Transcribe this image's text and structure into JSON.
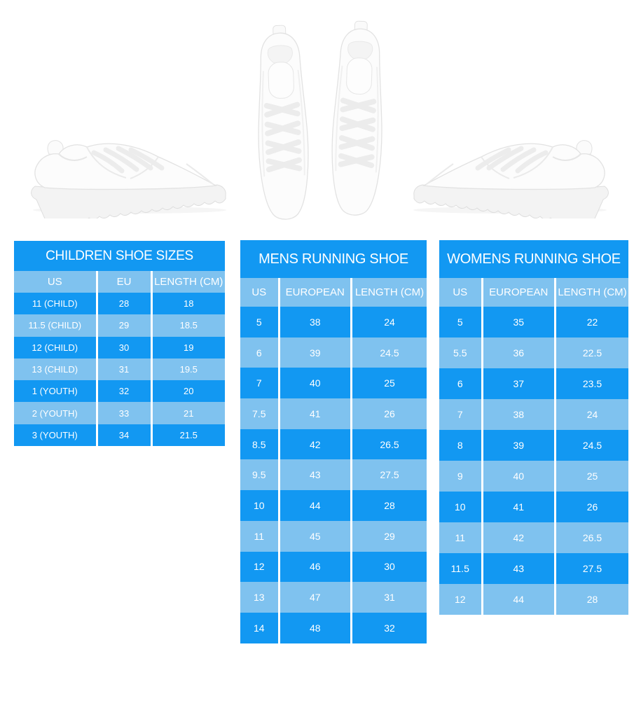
{
  "page": {
    "background": "#FFFFFF"
  },
  "colors": {
    "title_blue": "#1298F2",
    "row_dark_blue": "#1298F2",
    "row_light_blue": "#7FC2EF",
    "text": "#FFFFFF"
  },
  "shoes": {
    "left_image": "white-sneaker-side-view-facing-right",
    "center_image": "white-sneakers-pair-top-view",
    "right_image": "white-sneaker-side-view-facing-left"
  },
  "tables": [
    {
      "id": "children",
      "title": "CHILDREN SHOE SIZES",
      "columns": [
        "US",
        "EU",
        "LENGTH (CM)"
      ],
      "rows": [
        [
          "11 (CHILD)",
          "28",
          "18"
        ],
        [
          "11.5 (CHILD)",
          "29",
          "18.5"
        ],
        [
          "12 (CHILD)",
          "30",
          "19"
        ],
        [
          "13 (CHILD)",
          "31",
          "19.5"
        ],
        [
          "1 (YOUTH)",
          "32",
          "20"
        ],
        [
          "2 (YOUTH)",
          "33",
          "21"
        ],
        [
          "3 (YOUTH)",
          "34",
          "21.5"
        ]
      ]
    },
    {
      "id": "mens",
      "title": "MENS RUNNING SHOE",
      "columns": [
        "US",
        "EUROPEAN",
        "LENGTH (CM)"
      ],
      "rows": [
        [
          "5",
          "38",
          "24"
        ],
        [
          "6",
          "39",
          "24.5"
        ],
        [
          "7",
          "40",
          "25"
        ],
        [
          "7.5",
          "41",
          "26"
        ],
        [
          "8.5",
          "42",
          "26.5"
        ],
        [
          "9.5",
          "43",
          "27.5"
        ],
        [
          "10",
          "44",
          "28"
        ],
        [
          "11",
          "45",
          "29"
        ],
        [
          "12",
          "46",
          "30"
        ],
        [
          "13",
          "47",
          "31"
        ],
        [
          "14",
          "48",
          "32"
        ]
      ]
    },
    {
      "id": "womens",
      "title": "WOMENS RUNNING SHOE",
      "columns": [
        "US",
        "EUROPEAN",
        "LENGTH (CM)"
      ],
      "rows": [
        [
          "5",
          "35",
          "22"
        ],
        [
          "5.5",
          "36",
          "22.5"
        ],
        [
          "6",
          "37",
          "23.5"
        ],
        [
          "7",
          "38",
          "24"
        ],
        [
          "8",
          "39",
          "24.5"
        ],
        [
          "9",
          "40",
          "25"
        ],
        [
          "10",
          "41",
          "26"
        ],
        [
          "11",
          "42",
          "26.5"
        ],
        [
          "11.5",
          "43",
          "27.5"
        ],
        [
          "12",
          "44",
          "28"
        ]
      ]
    }
  ]
}
